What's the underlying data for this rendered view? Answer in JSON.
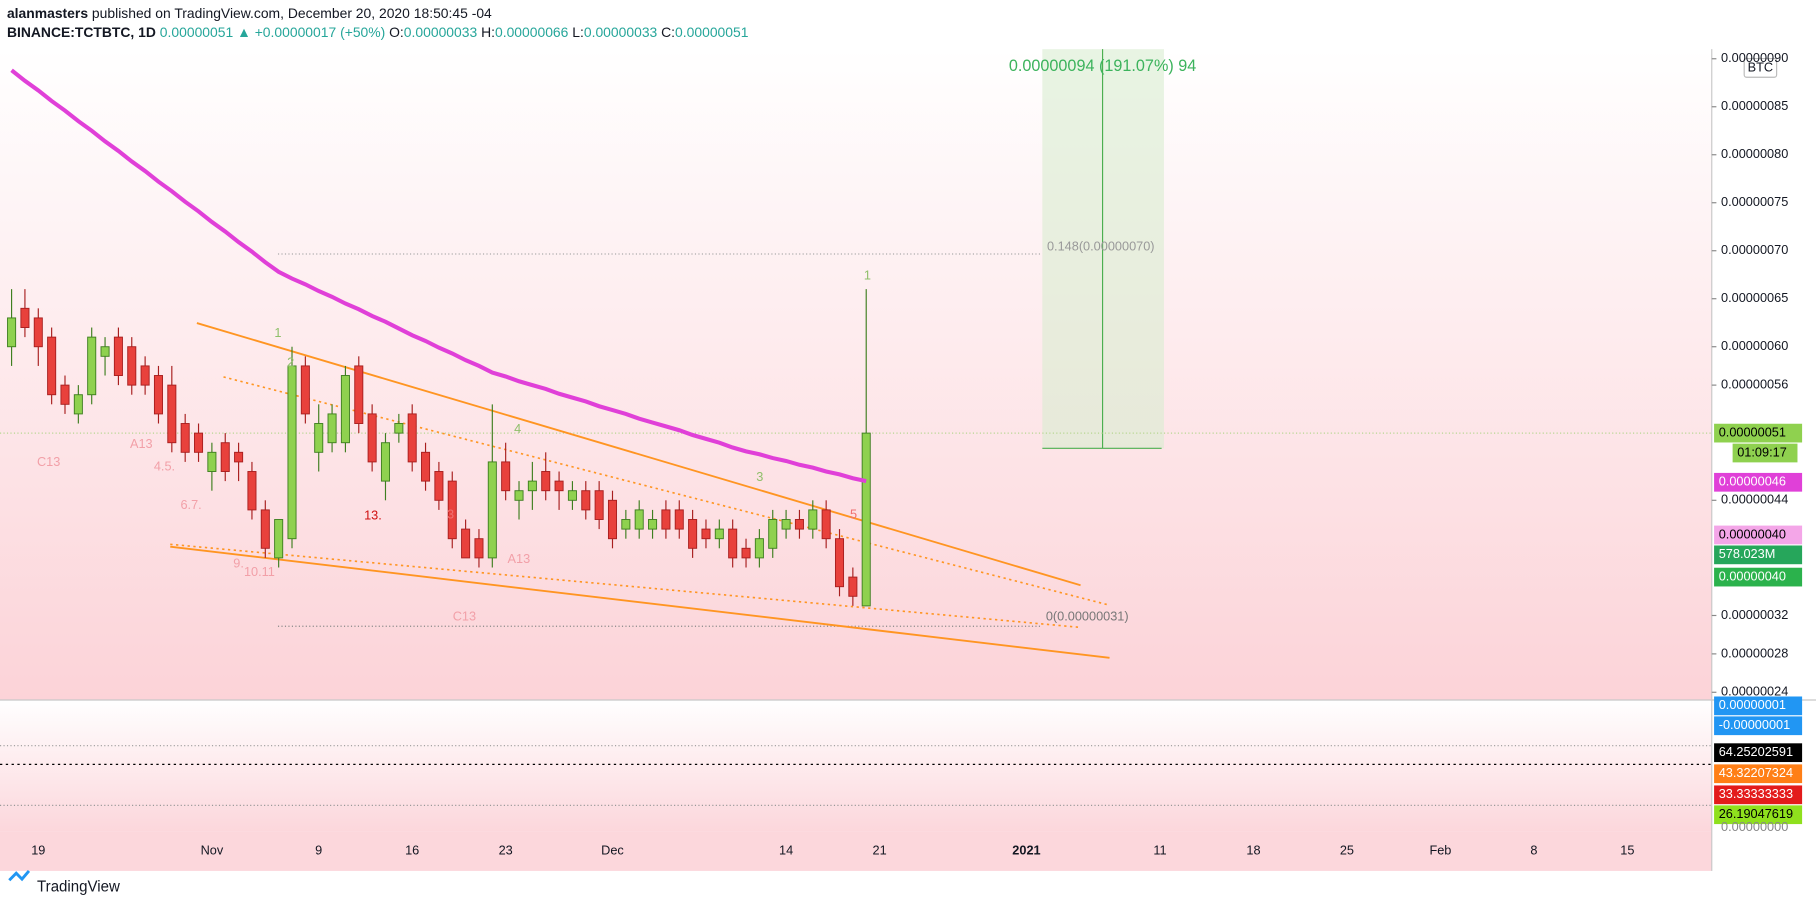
{
  "header": {
    "author": "alanmasters",
    "published": "published on TradingView.com, December 20, 2020 18:50:45 -04",
    "symbol": "BINANCE:TCTBTC, 1D",
    "last": "0.00000051",
    "change": "▲ +0.00000017 (+50%)",
    "o_label": "O:",
    "o": "0.00000033",
    "h_label": "H:",
    "h": "0.00000066",
    "l_label": "L:",
    "l": "0.00000033",
    "c_label": "C:",
    "c": "0.00000051"
  },
  "chart_data": {
    "type": "candlestick",
    "up_color": "#8fd14f",
    "down_color": "#e8413c",
    "ma_color": "#e040d8",
    "open": [
      6e-07,
      6.4e-07,
      6.3e-07,
      6.1e-07,
      5.6e-07,
      5.3e-07,
      5.5e-07,
      5.9e-07,
      6.1e-07,
      6e-07,
      5.8e-07,
      5.7e-07,
      5.6e-07,
      5.2e-07,
      5.1e-07,
      4.7e-07,
      5e-07,
      4.9e-07,
      4.7e-07,
      4.3e-07,
      3.8e-07,
      4e-07,
      5.8e-07,
      4.9e-07,
      5e-07,
      5e-07,
      5.8e-07,
      5.3e-07,
      4.6e-07,
      5.1e-07,
      5.3e-07,
      4.9e-07,
      4.7e-07,
      4.6e-07,
      4.1e-07,
      4e-07,
      3.8e-07,
      4.8e-07,
      4.4e-07,
      4.5e-07,
      4.7e-07,
      4.6e-07,
      4.4e-07,
      4.5e-07,
      4.5e-07,
      4.4e-07,
      4.1e-07,
      4.1e-07,
      4.1e-07,
      4.3e-07,
      4.3e-07,
      4.2e-07,
      4.1e-07,
      4e-07,
      4.1e-07,
      3.9e-07,
      3.8e-07,
      3.9e-07,
      4.1e-07,
      4.2e-07,
      4.1e-07,
      4.3e-07,
      4e-07,
      3.6e-07,
      3.3e-07
    ],
    "high": [
      6.6e-07,
      6.6e-07,
      6.4e-07,
      6.2e-07,
      5.7e-07,
      5.6e-07,
      6.2e-07,
      6.1e-07,
      6.2e-07,
      6.1e-07,
      5.9e-07,
      5.8e-07,
      5.8e-07,
      5.3e-07,
      5.2e-07,
      5e-07,
      5.1e-07,
      5e-07,
      4.8e-07,
      4.4e-07,
      4.2e-07,
      6e-07,
      5.9e-07,
      5.4e-07,
      5.4e-07,
      5.8e-07,
      5.9e-07,
      5.4e-07,
      5.1e-07,
      5.3e-07,
      5.4e-07,
      5e-07,
      4.8e-07,
      4.7e-07,
      4.2e-07,
      4.1e-07,
      5.4e-07,
      5e-07,
      4.6e-07,
      4.8e-07,
      4.9e-07,
      4.7e-07,
      4.6e-07,
      4.6e-07,
      4.6e-07,
      4.5e-07,
      4.3e-07,
      4.4e-07,
      4.3e-07,
      4.4e-07,
      4.4e-07,
      4.3e-07,
      4.2e-07,
      4.2e-07,
      4.2e-07,
      4e-07,
      4.1e-07,
      4.3e-07,
      4.3e-07,
      4.3e-07,
      4.4e-07,
      4.4e-07,
      4.1e-07,
      3.7e-07,
      6.6e-07
    ],
    "low": [
      5.8e-07,
      6.1e-07,
      5.8e-07,
      5.4e-07,
      5.3e-07,
      5.2e-07,
      5.4e-07,
      5.7e-07,
      5.6e-07,
      5.5e-07,
      5.5e-07,
      5.2e-07,
      4.9e-07,
      4.8e-07,
      4.8e-07,
      4.5e-07,
      4.6e-07,
      4.6e-07,
      4.2e-07,
      3.8e-07,
      3.7e-07,
      3.9e-07,
      5.2e-07,
      4.7e-07,
      4.9e-07,
      4.9e-07,
      5.1e-07,
      4.7e-07,
      4.4e-07,
      5e-07,
      4.7e-07,
      4.5e-07,
      4.3e-07,
      3.9e-07,
      3.8e-07,
      3.7e-07,
      3.7e-07,
      4.4e-07,
      4.2e-07,
      4.3e-07,
      4.4e-07,
      4.3e-07,
      4.3e-07,
      4.2e-07,
      4.1e-07,
      3.9e-07,
      4e-07,
      4e-07,
      4e-07,
      4e-07,
      4e-07,
      3.8e-07,
      3.9e-07,
      3.9e-07,
      3.7e-07,
      3.7e-07,
      3.7e-07,
      3.8e-07,
      4e-07,
      4e-07,
      4e-07,
      3.9e-07,
      3.4e-07,
      3.3e-07,
      3.3e-07
    ],
    "close": [
      6.3e-07,
      6.2e-07,
      6e-07,
      5.5e-07,
      5.4e-07,
      5.5e-07,
      6.1e-07,
      6e-07,
      5.7e-07,
      5.6e-07,
      5.6e-07,
      5.3e-07,
      5e-07,
      4.9e-07,
      4.9e-07,
      4.9e-07,
      4.7e-07,
      4.8e-07,
      4.3e-07,
      3.9e-07,
      4.2e-07,
      5.8e-07,
      5.3e-07,
      5.2e-07,
      5.3e-07,
      5.7e-07,
      5.2e-07,
      4.8e-07,
      5e-07,
      5.2e-07,
      4.8e-07,
      4.6e-07,
      4.4e-07,
      4e-07,
      3.8e-07,
      3.8e-07,
      4.8e-07,
      4.5e-07,
      4.5e-07,
      4.6e-07,
      4.5e-07,
      4.5e-07,
      4.5e-07,
      4.3e-07,
      4.2e-07,
      4e-07,
      4.2e-07,
      4.3e-07,
      4.2e-07,
      4.1e-07,
      4.1e-07,
      3.9e-07,
      4e-07,
      4.1e-07,
      3.8e-07,
      3.8e-07,
      4e-07,
      4.2e-07,
      4.2e-07,
      4.1e-07,
      4.3e-07,
      4e-07,
      3.5e-07,
      3.4e-07,
      5.1e-07
    ],
    "ma": [
      8.88e-07,
      8.77e-07,
      8.67e-07,
      8.56e-07,
      8.46e-07,
      8.35e-07,
      8.25e-07,
      8.14e-07,
      8.04e-07,
      7.93e-07,
      7.83e-07,
      7.72e-07,
      7.62e-07,
      7.51e-07,
      7.41e-07,
      7.3e-07,
      7.2e-07,
      7.09e-07,
      6.99e-07,
      6.88e-07,
      6.78e-07,
      6.71e-07,
      6.65e-07,
      6.58e-07,
      6.52e-07,
      6.45e-07,
      6.39e-07,
      6.32e-07,
      6.26e-07,
      6.19e-07,
      6.12e-07,
      6.06e-07,
      5.99e-07,
      5.93e-07,
      5.86e-07,
      5.8e-07,
      5.73e-07,
      5.69e-07,
      5.64e-07,
      5.6e-07,
      5.56e-07,
      5.51e-07,
      5.47e-07,
      5.43e-07,
      5.38e-07,
      5.34e-07,
      5.3e-07,
      5.25e-07,
      5.21e-07,
      5.17e-07,
      5.13e-07,
      5.08e-07,
      5.04e-07,
      5e-07,
      4.95e-07,
      4.91e-07,
      4.88e-07,
      4.84e-07,
      4.81e-07,
      4.77e-07,
      4.74e-07,
      4.7e-07,
      4.67e-07,
      4.63e-07,
      4.6e-07
    ],
    "ylim": [
      2.3e-07,
      9.1e-07
    ],
    "yticks": [
      {
        "value": 9e-07,
        "label": "0.00000090"
      },
      {
        "value": 8.5e-07,
        "label": "0.00000085"
      },
      {
        "value": 8e-07,
        "label": "0.00000080"
      },
      {
        "value": 7.5e-07,
        "label": "0.00000075"
      },
      {
        "value": 7e-07,
        "label": "0.00000070"
      },
      {
        "value": 6.5e-07,
        "label": "0.00000065"
      },
      {
        "value": 6e-07,
        "label": "0.00000060"
      },
      {
        "value": 5.6e-07,
        "label": "0.00000056"
      },
      {
        "value": 4.4e-07,
        "label": "0.00000044"
      },
      {
        "value": 3.2e-07,
        "label": "0.00000032"
      },
      {
        "value": 2.8e-07,
        "label": "0.00000028"
      },
      {
        "value": 2.4e-07,
        "label": "0.00000024"
      }
    ],
    "xticks": [
      {
        "value": 2,
        "label": "19"
      },
      {
        "value": 15,
        "label": "Nov"
      },
      {
        "value": 23,
        "label": "9"
      },
      {
        "value": 30,
        "label": "16"
      },
      {
        "value": 37,
        "label": "23"
      },
      {
        "value": 45,
        "label": "Dec"
      },
      {
        "value": 58,
        "label": "14"
      },
      {
        "value": 65,
        "label": "21"
      },
      {
        "value": 76,
        "label": "2021"
      },
      {
        "value": 86,
        "label": "11"
      },
      {
        "value": 93,
        "label": "18"
      },
      {
        "value": 100,
        "label": "25"
      },
      {
        "value": 107,
        "label": "Feb"
      },
      {
        "value": 114,
        "label": "8"
      },
      {
        "value": 121,
        "label": "15"
      }
    ],
    "currency": "BTC",
    "measure": "0.00000094 (191.07%) 94",
    "fib_top": "0.148(0.00000070)",
    "fib_bottom": "0(0.00000031)",
    "td_labels": [
      "1",
      "5",
      "3",
      "C13",
      "A13",
      "13.",
      "9.",
      "10.11",
      "4.5.",
      "6.7.",
      "C13",
      "A13",
      "2",
      "1",
      "4",
      "3"
    ],
    "axis_labels": [
      "0.00000051",
      "01:09:17",
      "0.00000046",
      "0.00000040",
      "578.023M",
      "0.00000040"
    ],
    "pane_labels": [
      "0.00000001",
      "-0.00000001",
      "64.25202591",
      "43.32207324",
      "33.33333333",
      "26.19047619",
      "0.00000000"
    ]
  },
  "footer": "TradingView"
}
